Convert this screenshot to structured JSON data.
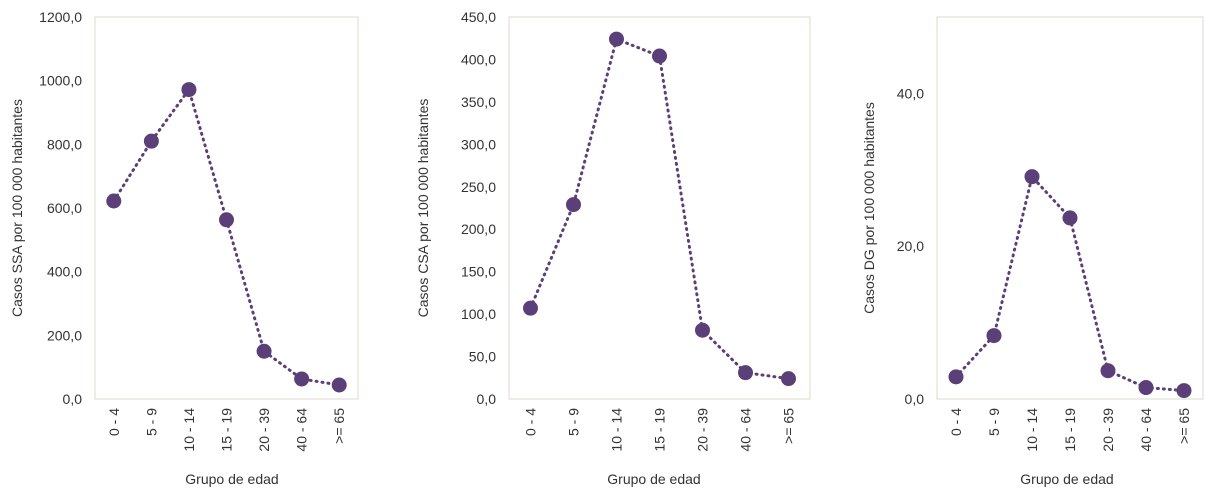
{
  "chart_data": [
    {
      "type": "line",
      "categories": [
        "0 - 4",
        "5 - 9",
        "10 - 14",
        "15 - 19",
        "20 - 39",
        "40 - 64",
        ">= 65"
      ],
      "values": [
        622,
        810,
        972,
        563,
        150,
        63,
        44
      ],
      "xlabel": "Grupo de edad",
      "ylabel": "Casos SSA por 100 000 habitantes",
      "ylim": [
        0,
        1200
      ],
      "yticks": [
        "0,0",
        "200,0",
        "400,0",
        "600,0",
        "800,0",
        "1000,0",
        "1200,0"
      ],
      "ytick_values": [
        0,
        200,
        400,
        600,
        800,
        1000,
        1200
      ],
      "grid": false,
      "legend": "none",
      "color": "#5b3f78"
    },
    {
      "type": "line",
      "categories": [
        "0 - 4",
        "5 - 9",
        "10 - 14",
        "15 - 19",
        "20 - 39",
        "40 - 64",
        ">= 65"
      ],
      "values": [
        107,
        229,
        424,
        404,
        81,
        31,
        24
      ],
      "xlabel": "Grupo de edad",
      "ylabel": "Casos CSA por 100 000 habitantes",
      "ylim": [
        0,
        450
      ],
      "yticks": [
        "0,0",
        "50,0",
        "100,0",
        "150,0",
        "200,0",
        "250,0",
        "300,0",
        "350,0",
        "400,0",
        "450,0"
      ],
      "ytick_values": [
        0,
        50,
        100,
        150,
        200,
        250,
        300,
        350,
        400,
        450
      ],
      "grid": false,
      "legend": "none",
      "color": "#5b3f78"
    },
    {
      "type": "line",
      "categories": [
        "0 - 4",
        "5 - 9",
        "10 - 14",
        "15 - 19",
        "20 - 39",
        "40 - 64",
        ">= 65"
      ],
      "values": [
        2.9,
        8.3,
        29.1,
        23.7,
        3.7,
        1.5,
        1.1
      ],
      "xlabel": "Grupo de edad",
      "ylabel": "Casos DG por 100 000 habitantes",
      "ylim": [
        0,
        50
      ],
      "yticks": [
        "0,0",
        "20,0",
        "40,0"
      ],
      "ytick_values": [
        0,
        20,
        40
      ],
      "grid": false,
      "legend": "none",
      "color": "#5b3f78"
    }
  ]
}
